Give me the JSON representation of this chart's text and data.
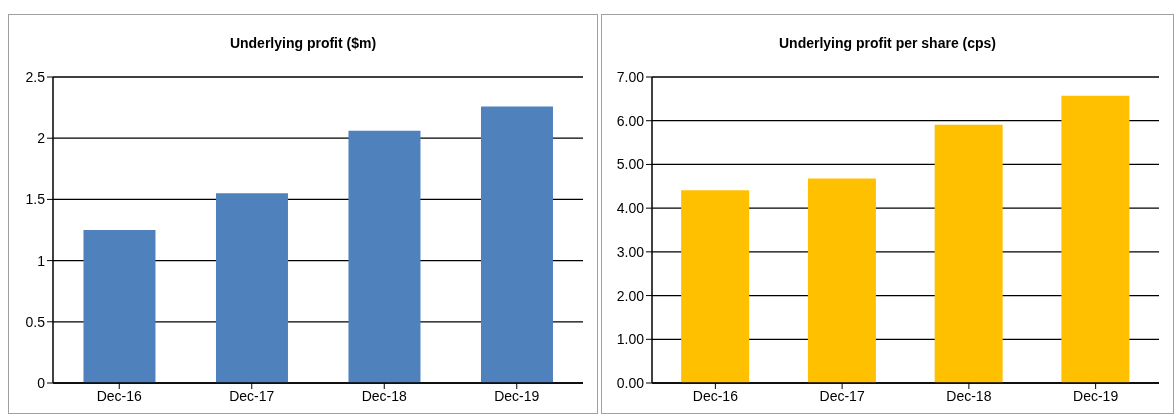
{
  "chart_data": [
    {
      "type": "bar",
      "title": "Underlying profit ($m)",
      "categories": [
        "Dec-16",
        "Dec-17",
        "Dec-18",
        "Dec-19"
      ],
      "values": [
        1.25,
        1.55,
        2.06,
        2.26
      ],
      "color": "#4f81bd",
      "ylim": [
        0,
        2.5
      ],
      "yticks": [
        0,
        0.5,
        1,
        1.5,
        2,
        2.5
      ],
      "grid": "y",
      "legend": false
    },
    {
      "type": "bar",
      "title": "Underlying profit per share (cps)",
      "categories": [
        "Dec-16",
        "Dec-17",
        "Dec-18",
        "Dec-19"
      ],
      "values": [
        4.41,
        4.68,
        5.91,
        6.57
      ],
      "color": "#ffc000",
      "ylim": [
        0,
        7
      ],
      "yticks": [
        {
          "value": 0,
          "label": "0.00"
        },
        {
          "value": 1,
          "label": "1.00"
        },
        {
          "value": 2,
          "label": "2.00"
        },
        {
          "value": 3,
          "label": "3.00"
        },
        {
          "value": 4,
          "label": "4.00"
        },
        {
          "value": 5,
          "label": "5.00"
        },
        {
          "value": 6,
          "label": "6.00"
        },
        {
          "value": 7,
          "label": "7.00"
        }
      ],
      "grid": "y",
      "legend": false
    }
  ]
}
